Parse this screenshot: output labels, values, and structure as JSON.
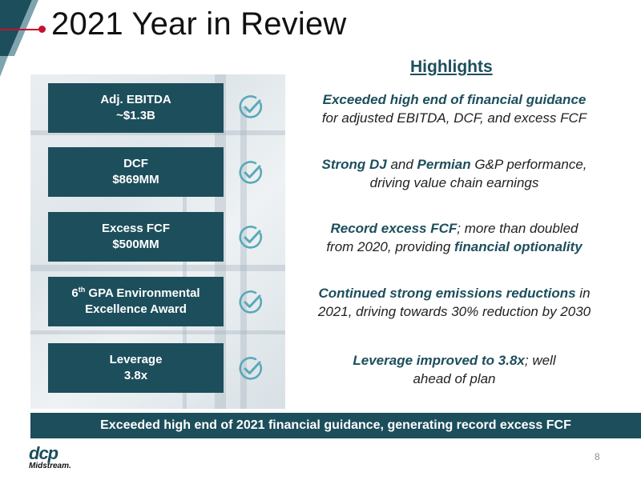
{
  "header": {
    "title": "2021 Year in Review"
  },
  "highlights_heading": "Highlights",
  "metrics": [
    {
      "label": "Adj. EBITDA",
      "value": "~$1.3B"
    },
    {
      "label": "DCF",
      "value": "$869MM"
    },
    {
      "label": "Excess FCF",
      "value": "$500MM"
    },
    {
      "label_sup": "th",
      "label_num": "6",
      "label_rest": " GPA Environmental",
      "value": "Excellence Award"
    },
    {
      "label": "Leverage",
      "value": "3.8x"
    }
  ],
  "highlights": [
    {
      "em1": "Exceeded high end of financial guidance",
      "t1": "for adjusted EBITDA, DCF, and excess FCF"
    },
    {
      "em1": "Strong DJ",
      "t1": " and ",
      "em2": "Permian",
      "t2": " G&P performance,",
      "t3": "driving value chain earnings"
    },
    {
      "em1": "Record excess FCF",
      "t1": "; more than doubled",
      "t2": "from 2020, providing ",
      "em2": "financial optionality"
    },
    {
      "em1": "Continued strong emissions reductions",
      "t1": " in",
      "t2": "2021, driving towards 30% reduction by 2030"
    },
    {
      "em1": "Leverage improved to 3.8x",
      "t1": "; well",
      "t2": "ahead of plan"
    }
  ],
  "footer": {
    "banner": "Exceeded high end of 2021 financial guidance, generating record excess FCF",
    "logo_top": "dcp",
    "logo_bottom": "Midstream.",
    "page_number": "8"
  },
  "icons": [
    "check-circle-icon"
  ],
  "colors": {
    "primary": "#1d4e5c",
    "accent": "#c8102e",
    "check": "#5aa9b8"
  }
}
